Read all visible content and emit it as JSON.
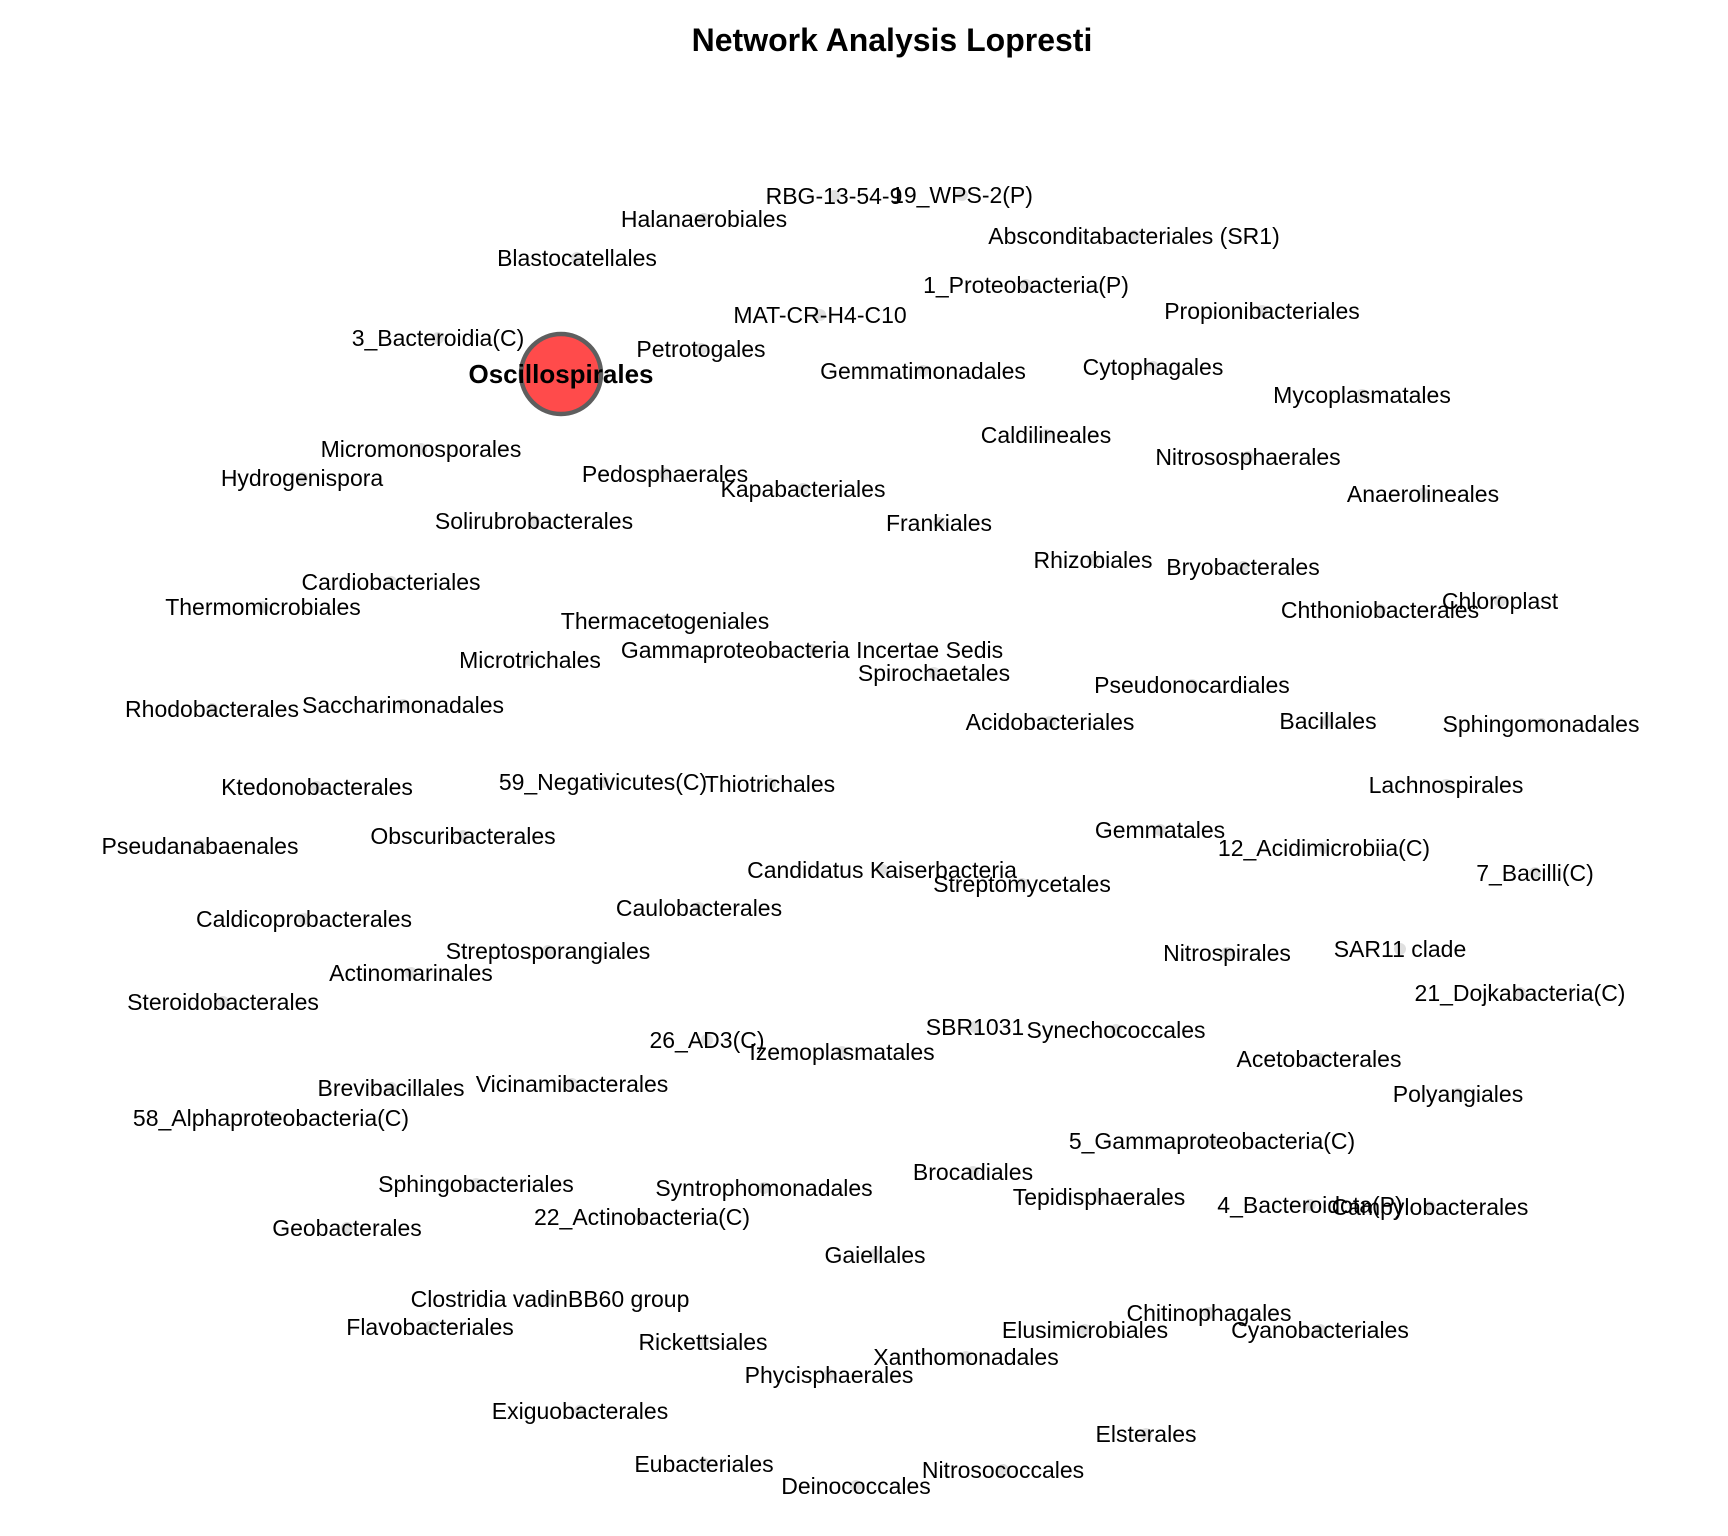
{
  "title": "Network Analysis Lopresti",
  "hub": {
    "label": "Oscillospirales",
    "fill_color": "#ff4b4b",
    "stroke_color": "#5e5e5e"
  },
  "nodes": [
    "RBG-13-54-9",
    "19_WPS-2(P)",
    "Halanaerobiales",
    "Absconditabacteriales (SR1)",
    "Blastocatellales",
    "1_Proteobacteria(P)",
    "MAT-CR-H4-C10",
    "Propionibacteriales",
    "3_Bacteroidia(C)",
    "Petrotogales",
    "Gemmatimonadales",
    "Cytophagales",
    "Mycoplasmatales",
    "Caldilineales",
    "Micromonosporales",
    "Nitrososphaerales",
    "Hydrogenispora",
    "Pedosphaerales",
    "Kapabacteriales",
    "Anaerolineales",
    "Solirubrobacterales",
    "Frankiales",
    "Rhizobiales",
    "Bryobacterales",
    "Cardiobacteriales",
    "Thermomicrobiales",
    "Chloroplast",
    "Chthoniobacterales",
    "Thermacetogeniales",
    "Gammaproteobacteria Incertae Sedis",
    "Microtrichales",
    "Spirochaetales",
    "Pseudonocardiales",
    "Saccharimonadales",
    "Rhodobacterales",
    "Acidobacteriales",
    "Bacillales",
    "Sphingomonadales",
    "59_Negativicutes(C)",
    "Thiotrichales",
    "Lachnospirales",
    "Ktedonobacterales",
    "Gemmatales",
    "Obscuribacterales",
    "Pseudanabaenales",
    "12_Acidimicrobiia(C)",
    "Candidatus Kaiserbacteria",
    "7_Bacilli(C)",
    "Streptomycetales",
    "Caulobacterales",
    "Caldicoprobacterales",
    "Streptosporangiales",
    "Nitrospirales",
    "SAR11 clade",
    "Actinomarinales",
    "Steroidobacterales",
    "21_Dojkabacteria(C)",
    "SBR1031",
    "Synechococcales",
    "26_AD3(C)",
    "Izemoplasmatales",
    "Acetobacterales",
    "Brevibacillales",
    "Vicinamibacterales",
    "Polyangiales",
    "58_Alphaproteobacteria(C)",
    "5_Gammaproteobacteria(C)",
    "Brocadiales",
    "Sphingobacteriales",
    "Syntrophomonadales",
    "Tepidisphaerales",
    "4_Bacteroidota(P)",
    "Campylobacterales",
    "Geobacterales",
    "22_Actinobacteria(C)",
    "Gaiellales",
    "Clostridia vadinBB60 group",
    "Chitinophagales",
    "Flavobacteriales",
    "Elusimicrobiales",
    "Cyanobacteriales",
    "Rickettsiales",
    "Xanthomonadales",
    "Phycisphaerales",
    "Exiguobacterales",
    "Elsterales",
    "Eubacteriales",
    "Nitrosococcales",
    "Deinococcales"
  ]
}
